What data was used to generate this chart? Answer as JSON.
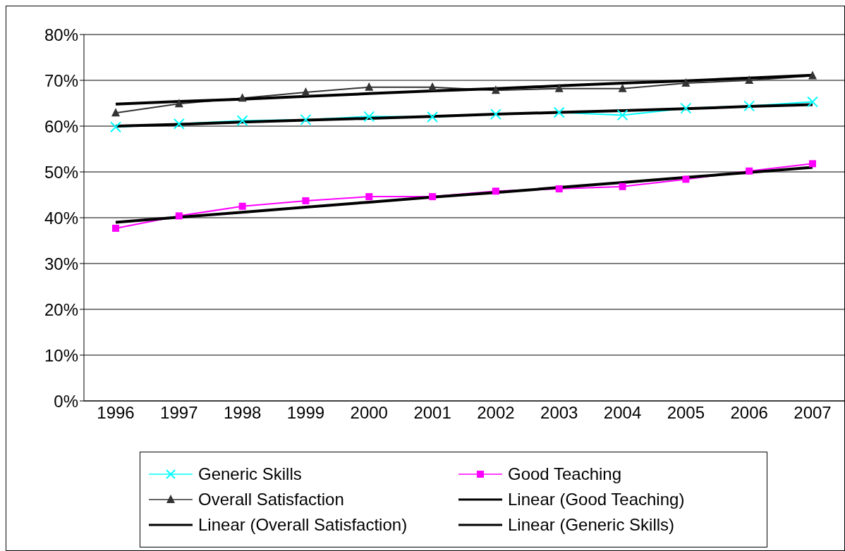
{
  "chart_data": {
    "type": "line",
    "categories": [
      "1996",
      "1997",
      "1998",
      "1999",
      "2000",
      "2001",
      "2002",
      "2003",
      "2004",
      "2005",
      "2006",
      "2007"
    ],
    "ylim": [
      0,
      80
    ],
    "yticks": [
      {
        "value": 0,
        "label": "0%"
      },
      {
        "value": 10,
        "label": "10%"
      },
      {
        "value": 20,
        "label": "20%"
      },
      {
        "value": 30,
        "label": "30%"
      },
      {
        "value": 40,
        "label": "40%"
      },
      {
        "value": 50,
        "label": "50%"
      },
      {
        "value": 60,
        "label": "60%"
      },
      {
        "value": 70,
        "label": "70%"
      },
      {
        "value": 80,
        "label": "80%"
      }
    ],
    "grid": "y",
    "legend": "bottom",
    "line_style": "solid",
    "series": [
      {
        "name": "Generic Skills",
        "color": "#00ffff",
        "marker": "cross",
        "values": [
          59.8,
          60.5,
          61.2,
          61.4,
          62.1,
          62.0,
          62.6,
          63.0,
          62.4,
          63.9,
          64.4,
          65.3
        ]
      },
      {
        "name": "Good Teaching",
        "color": "#ff00ff",
        "marker": "square",
        "values": [
          37.7,
          40.4,
          42.5,
          43.7,
          44.6,
          44.6,
          45.8,
          46.3,
          46.8,
          48.4,
          50.2,
          51.8
        ]
      },
      {
        "name": "Overall Satisfaction",
        "color": "#333333",
        "marker": "triangle",
        "values": [
          62.9,
          64.9,
          66.1,
          67.4,
          68.5,
          68.5,
          67.8,
          68.2,
          68.2,
          69.4,
          70.0,
          71.0
        ]
      },
      {
        "name": "Linear (Good Teaching)",
        "type": "line",
        "color": "#000000",
        "values": [
          39.0,
          40.1,
          41.2,
          42.3,
          43.4,
          44.5,
          45.5,
          46.6,
          47.7,
          48.8,
          49.9,
          51.0
        ]
      },
      {
        "name": "Linear (Overall Satisfaction)",
        "type": "line",
        "color": "#000000",
        "values": [
          64.8,
          65.4,
          65.9,
          66.5,
          67.1,
          67.7,
          68.2,
          68.8,
          69.4,
          69.9,
          70.5,
          71.1
        ]
      },
      {
        "name": "Linear (Generic Skills)",
        "type": "line",
        "color": "#000000",
        "values": [
          60.0,
          60.4,
          60.9,
          61.3,
          61.7,
          62.1,
          62.6,
          63.0,
          63.4,
          63.8,
          64.3,
          64.7
        ]
      }
    ]
  }
}
